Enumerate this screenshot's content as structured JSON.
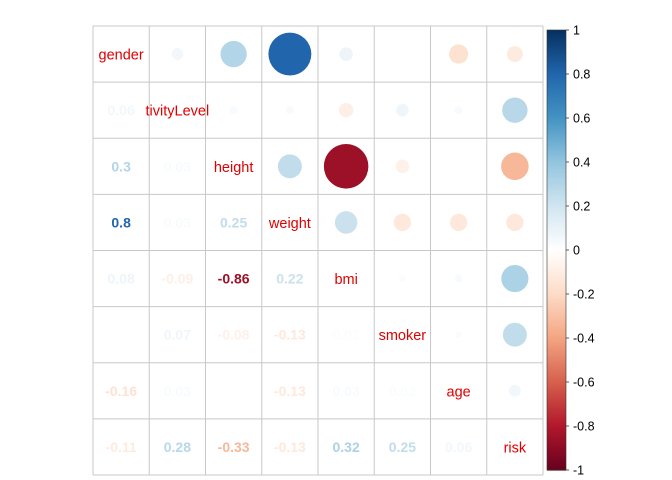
{
  "chart_data": {
    "type": "heatmap",
    "variables": [
      "gender",
      "activityLevel",
      "height",
      "weight",
      "bmi",
      "smoker",
      "age",
      "risk"
    ],
    "visible_diagonal_labels": [
      "gender",
      "tivityLevel",
      "height",
      "weight",
      "bmi",
      "smoker",
      "age",
      "risk"
    ],
    "upper_method": "circle",
    "lower_method": "number",
    "diagonal": "label",
    "matrix": [
      [
        1.0,
        0.06,
        0.3,
        0.8,
        0.08,
        0.0,
        -0.16,
        -0.11
      ],
      [
        0.06,
        1.0,
        0.03,
        0.03,
        -0.09,
        0.07,
        0.03,
        0.28
      ],
      [
        0.3,
        0.03,
        1.0,
        0.25,
        -0.86,
        -0.08,
        0.0,
        -0.33
      ],
      [
        0.8,
        0.03,
        0.25,
        1.0,
        0.22,
        -0.13,
        -0.13,
        -0.13
      ],
      [
        0.08,
        -0.09,
        -0.86,
        0.22,
        1.0,
        0.02,
        0.03,
        0.32
      ],
      [
        0.0,
        0.07,
        -0.08,
        -0.13,
        0.02,
        1.0,
        0.02,
        0.25
      ],
      [
        -0.16,
        0.03,
        0.0,
        -0.13,
        0.03,
        0.02,
        1.0,
        0.06
      ],
      [
        -0.11,
        0.28,
        -0.33,
        -0.13,
        0.32,
        0.25,
        0.06,
        1.0
      ]
    ],
    "lower_labels": [
      [
        "",
        "",
        "",
        "",
        "",
        "",
        "",
        ""
      ],
      [
        "0.06",
        "",
        "",
        "",
        "",
        "",
        "",
        ""
      ],
      [
        "0.3",
        "0.03",
        "",
        "",
        "",
        "",
        "",
        ""
      ],
      [
        "0.8",
        "0.03",
        "0.25",
        "",
        "",
        "",
        "",
        ""
      ],
      [
        "0.08",
        "-0.09",
        "-0.86",
        "0.22",
        "",
        "",
        "",
        ""
      ],
      [
        "",
        "0.07",
        "-0.08",
        "-0.13",
        "0.02",
        "",
        "",
        ""
      ],
      [
        "-0.16",
        "0.03",
        "",
        "-0.13",
        "0.03",
        "0.02",
        "",
        ""
      ],
      [
        "-0.11",
        "0.28",
        "-0.33",
        "-0.13",
        "0.32",
        "0.25",
        "0.06",
        ""
      ]
    ],
    "colorbar": {
      "ticks": [
        "1",
        "0.8",
        "0.6",
        "0.4",
        "0.2",
        "0",
        "-0.2",
        "-0.4",
        "-0.6",
        "-0.8",
        "-1"
      ],
      "range": [
        -1,
        1
      ]
    },
    "palette": [
      "#67001F",
      "#B2182B",
      "#D6604D",
      "#F4A582",
      "#FDDBC7",
      "#FFFFFF",
      "#D1E5F0",
      "#92C5DE",
      "#4393C3",
      "#2166AC",
      "#053061"
    ],
    "label_color": "#e00000",
    "grid_color": "#c8c8c8",
    "grid": true
  }
}
